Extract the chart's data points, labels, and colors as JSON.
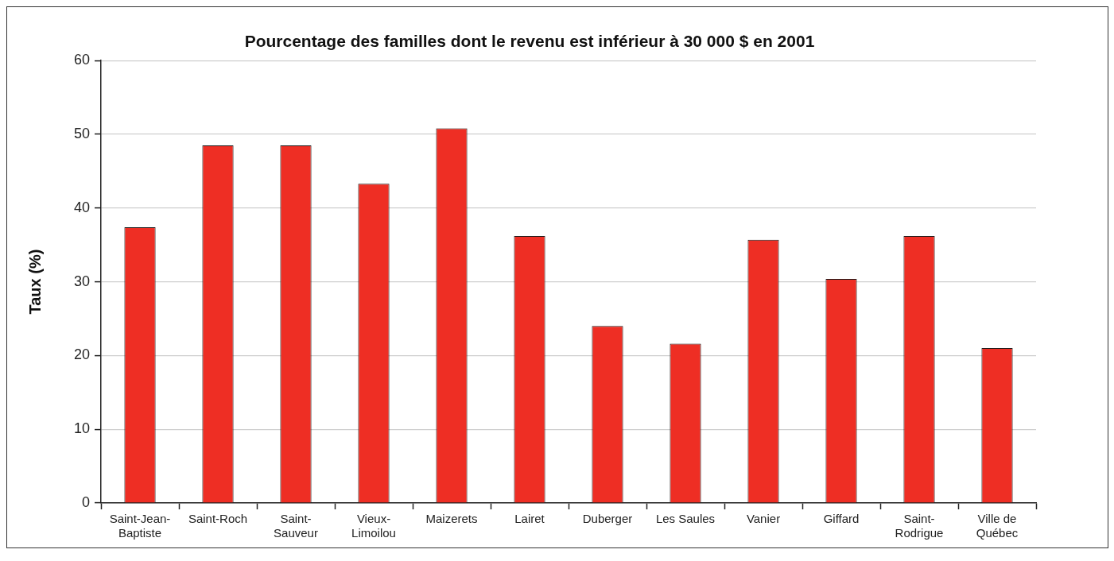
{
  "chart_data": {
    "type": "bar",
    "title": "Pourcentage des familles dont le revenu est inférieur à 30 000 $ en 2001",
    "ylabel": "Taux (%)",
    "categories": [
      "Saint-Jean-\nBaptiste",
      "Saint-Roch",
      "Saint-\nSauveur",
      "Vieux-\nLimoilou",
      "Maizerets",
      "Lairet",
      "Duberger",
      "Les Saules",
      "Vanier",
      "Giffard",
      "Saint-\nRodrigue",
      "Ville de\nQuébec"
    ],
    "values": [
      37.4,
      48.5,
      48.5,
      43.3,
      50.8,
      36.2,
      24.0,
      21.6,
      35.7,
      30.4,
      36.2,
      21.0
    ],
    "color": "#ee2e24",
    "ylim": [
      0,
      60
    ],
    "yticks": [
      0,
      10,
      20,
      30,
      40,
      50,
      60
    ],
    "grid": "y",
    "legend": false
  }
}
